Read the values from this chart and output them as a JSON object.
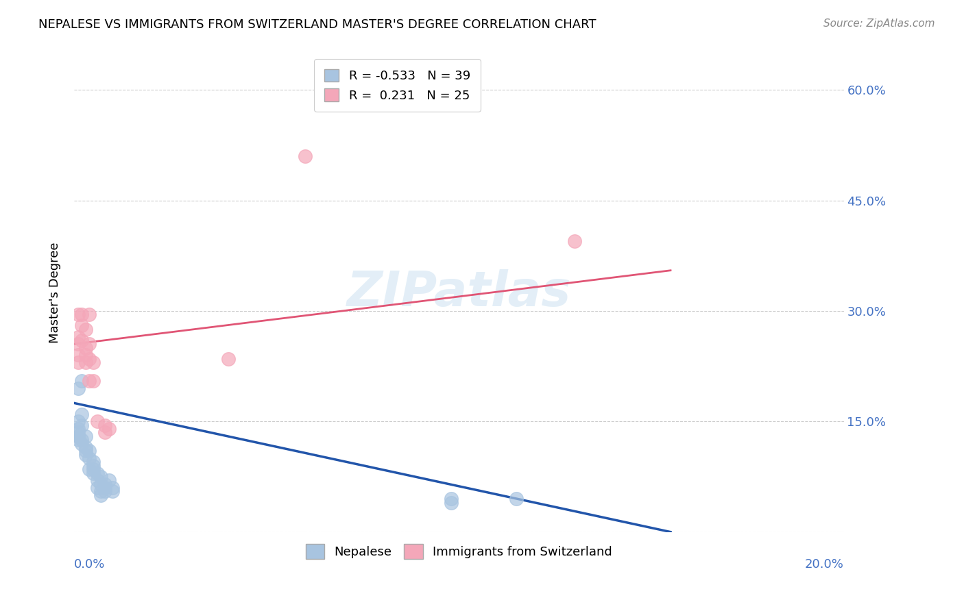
{
  "title": "NEPALESE VS IMMIGRANTS FROM SWITZERLAND MASTER'S DEGREE CORRELATION CHART",
  "source": "Source: ZipAtlas.com",
  "ylabel": "Master's Degree",
  "y_ticks": [
    0.0,
    0.15,
    0.3,
    0.45,
    0.6
  ],
  "y_tick_labels": [
    "",
    "15.0%",
    "30.0%",
    "45.0%",
    "60.0%"
  ],
  "x_range": [
    0.0,
    0.2
  ],
  "y_range": [
    0.0,
    0.65
  ],
  "legend_r1": "R = -0.533   N = 39",
  "legend_r2": "R =  0.231   N = 25",
  "watermark": "ZIPatlas",
  "nepalese_color": "#a8c4e0",
  "swiss_color": "#f4a7b9",
  "nepalese_line_color": "#2255aa",
  "swiss_line_color": "#e05575",
  "nepalese_points": [
    [
      0.001,
      0.135
    ],
    [
      0.002,
      0.205
    ],
    [
      0.001,
      0.195
    ],
    [
      0.001,
      0.13
    ],
    [
      0.001,
      0.125
    ],
    [
      0.002,
      0.145
    ],
    [
      0.001,
      0.15
    ],
    [
      0.002,
      0.16
    ],
    [
      0.001,
      0.14
    ],
    [
      0.001,
      0.13
    ],
    [
      0.002,
      0.125
    ],
    [
      0.003,
      0.13
    ],
    [
      0.002,
      0.12
    ],
    [
      0.003,
      0.115
    ],
    [
      0.003,
      0.11
    ],
    [
      0.003,
      0.105
    ],
    [
      0.004,
      0.11
    ],
    [
      0.004,
      0.1
    ],
    [
      0.005,
      0.095
    ],
    [
      0.005,
      0.09
    ],
    [
      0.004,
      0.085
    ],
    [
      0.005,
      0.085
    ],
    [
      0.005,
      0.08
    ],
    [
      0.006,
      0.08
    ],
    [
      0.006,
      0.07
    ],
    [
      0.007,
      0.075
    ],
    [
      0.007,
      0.065
    ],
    [
      0.006,
      0.06
    ],
    [
      0.007,
      0.055
    ],
    [
      0.007,
      0.05
    ],
    [
      0.008,
      0.06
    ],
    [
      0.008,
      0.065
    ],
    [
      0.008,
      0.055
    ],
    [
      0.009,
      0.07
    ],
    [
      0.01,
      0.055
    ],
    [
      0.01,
      0.06
    ],
    [
      0.098,
      0.04
    ],
    [
      0.098,
      0.045
    ],
    [
      0.115,
      0.045
    ]
  ],
  "swiss_points": [
    [
      0.001,
      0.265
    ],
    [
      0.001,
      0.255
    ],
    [
      0.001,
      0.295
    ],
    [
      0.002,
      0.28
    ],
    [
      0.002,
      0.26
    ],
    [
      0.002,
      0.295
    ],
    [
      0.001,
      0.24
    ],
    [
      0.001,
      0.23
    ],
    [
      0.003,
      0.275
    ],
    [
      0.003,
      0.25
    ],
    [
      0.003,
      0.24
    ],
    [
      0.004,
      0.255
    ],
    [
      0.003,
      0.23
    ],
    [
      0.004,
      0.295
    ],
    [
      0.004,
      0.235
    ],
    [
      0.005,
      0.23
    ],
    [
      0.004,
      0.205
    ],
    [
      0.005,
      0.205
    ],
    [
      0.006,
      0.15
    ],
    [
      0.008,
      0.135
    ],
    [
      0.008,
      0.145
    ],
    [
      0.009,
      0.14
    ],
    [
      0.04,
      0.235
    ],
    [
      0.06,
      0.51
    ],
    [
      0.13,
      0.395
    ]
  ],
  "nepalese_line": [
    [
      0.0,
      0.175
    ],
    [
      0.155,
      0.0
    ]
  ],
  "swiss_line": [
    [
      0.0,
      0.255
    ],
    [
      0.155,
      0.355
    ]
  ],
  "x_ticks": [
    0.0,
    0.04,
    0.08,
    0.12,
    0.16,
    0.2
  ]
}
